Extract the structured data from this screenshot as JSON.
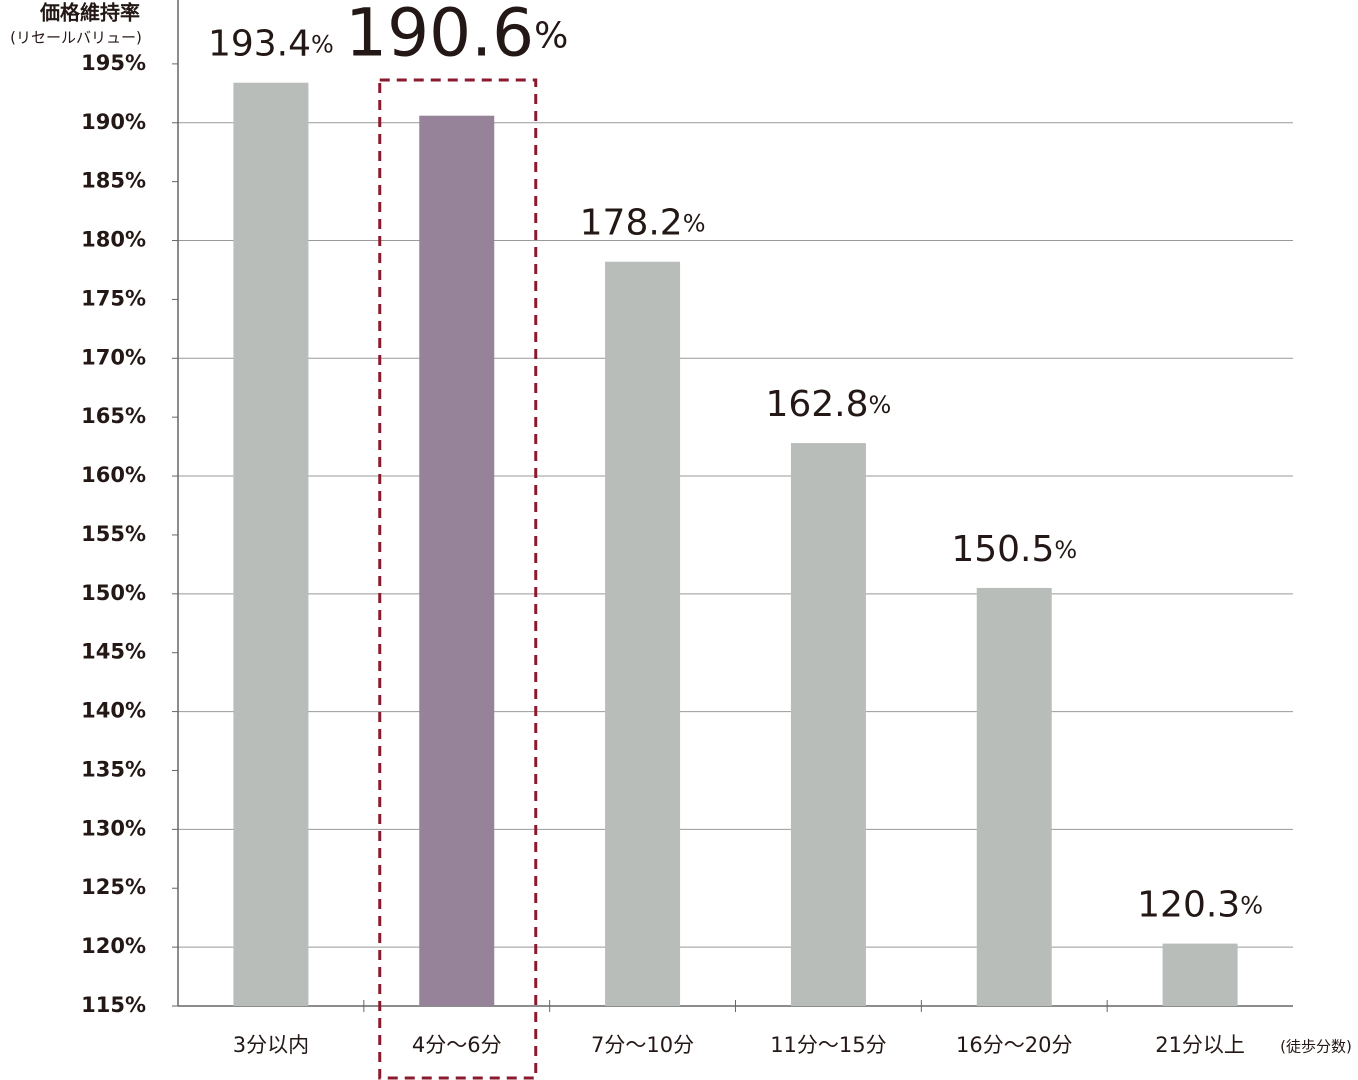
{
  "chart_data": {
    "type": "bar",
    "y_label": "価格維持率",
    "y_sublabel": "(リセールバリュー)",
    "x_label": "(徒歩分数)",
    "categories": [
      "3分以内",
      "4分～6分",
      "7分～10分",
      "11分～15分",
      "16分～20分",
      "21分以上"
    ],
    "values": [
      193.4,
      190.6,
      178.2,
      162.8,
      150.5,
      120.3
    ],
    "value_labels": [
      "193.4%",
      "190.6%",
      "178.2%",
      "162.8%",
      "150.5%",
      "120.3%"
    ],
    "color": "#b9bdb9",
    "highlight": 1,
    "highlight_bar_color": "#978399",
    "highlight_color": "#8b1a2e",
    "ylim": [
      115,
      200
    ],
    "yticks": [
      {
        "value": 115,
        "label": "115%"
      },
      {
        "value": 120,
        "label": "120%"
      },
      {
        "value": 125,
        "label": "125%"
      },
      {
        "value": 130,
        "label": "130%"
      },
      {
        "value": 135,
        "label": "135%"
      },
      {
        "value": 140,
        "label": "140%"
      },
      {
        "value": 145,
        "label": "145%"
      },
      {
        "value": 150,
        "label": "150%"
      },
      {
        "value": 155,
        "label": "155%"
      },
      {
        "value": 160,
        "label": "160%"
      },
      {
        "value": 165,
        "label": "165%"
      },
      {
        "value": 170,
        "label": "170%"
      },
      {
        "value": 175,
        "label": "175%"
      },
      {
        "value": 180,
        "label": "180%"
      },
      {
        "value": 185,
        "label": "185%"
      },
      {
        "value": 190,
        "label": "190%"
      },
      {
        "value": 195,
        "label": "195%"
      }
    ],
    "grid": true
  }
}
